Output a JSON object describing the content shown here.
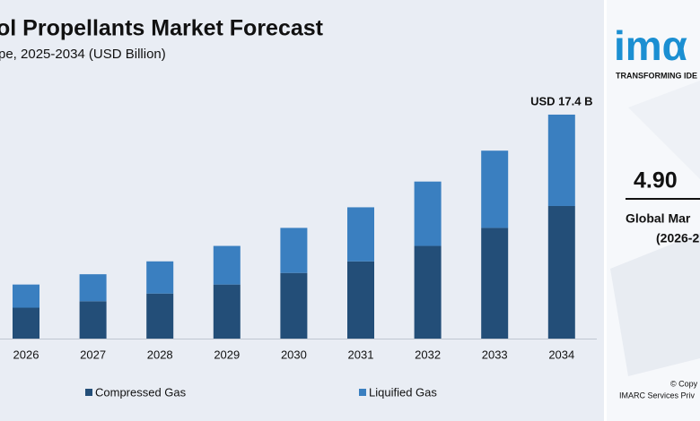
{
  "chart_data": {
    "type": "stacked_bar",
    "title": "ol Propellants Market Forecast",
    "subtitle": "pe, 2025-2034 (USD Billion)",
    "categories": [
      "2026",
      "2027",
      "2028",
      "2029",
      "2030",
      "2031",
      "2032",
      "2033",
      "2034"
    ],
    "series": [
      {
        "name": "Compressed Gas",
        "color": "#234e78",
        "values": [
          2.4,
          2.9,
          3.5,
          4.2,
          5.1,
          6.0,
          7.2,
          8.6,
          10.3
        ]
      },
      {
        "name": "Liquified Gas",
        "color": "#3a7fc0",
        "values": [
          1.8,
          2.1,
          2.5,
          3.0,
          3.5,
          4.2,
          5.0,
          6.0,
          7.1
        ]
      }
    ],
    "ylim": [
      0,
      18
    ],
    "annotation": {
      "text": "USD 17.4 B",
      "value": 17.4
    },
    "legend": "bottom"
  },
  "sidebar": {
    "logo": "imα",
    "tagline": "TRANSFORMING IDE",
    "cagr": "4.90",
    "cagr_label": "Global Mar",
    "period": "(2026-2",
    "copyright": "© Copy",
    "company": "IMARC Services Priv"
  }
}
